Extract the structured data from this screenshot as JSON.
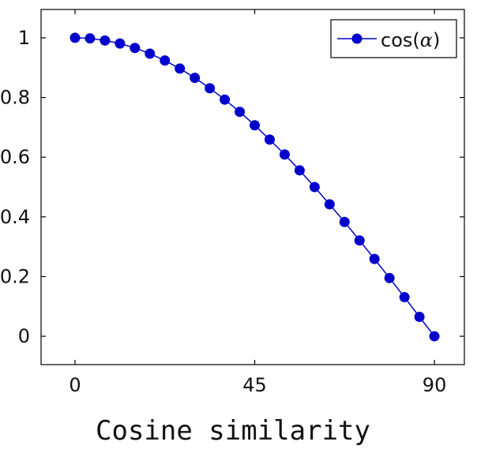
{
  "chart_data": {
    "type": "line",
    "x": [
      0,
      3.75,
      7.5,
      11.25,
      15,
      18.75,
      22.5,
      26.25,
      30,
      33.75,
      37.5,
      41.25,
      45,
      48.75,
      52.5,
      56.25,
      60,
      63.75,
      67.5,
      71.25,
      75,
      78.75,
      82.5,
      86.25,
      90
    ],
    "series": [
      {
        "name": "cos(α)",
        "values": [
          1.0,
          0.998,
          0.991,
          0.981,
          0.966,
          0.947,
          0.924,
          0.897,
          0.866,
          0.831,
          0.793,
          0.752,
          0.707,
          0.659,
          0.609,
          0.556,
          0.5,
          0.442,
          0.383,
          0.321,
          0.259,
          0.195,
          0.131,
          0.065,
          0.0
        ],
        "color": "#0000cc",
        "marker": "circle"
      }
    ],
    "xlim": [
      -8.5,
      97.5
    ],
    "ylim": [
      -0.095,
      1.095
    ],
    "xticks": [
      0,
      45,
      90
    ],
    "yticks": [
      0,
      0.2,
      0.4,
      0.6,
      0.8,
      1.0
    ],
    "xtick_labels": [
      "0",
      "45",
      "90"
    ],
    "ytick_labels": [
      "0",
      "0.2",
      "0.4",
      "0.6",
      "0.8",
      "1"
    ],
    "grid": false,
    "legend_position": "top-right",
    "caption": "Cosine similarity"
  }
}
